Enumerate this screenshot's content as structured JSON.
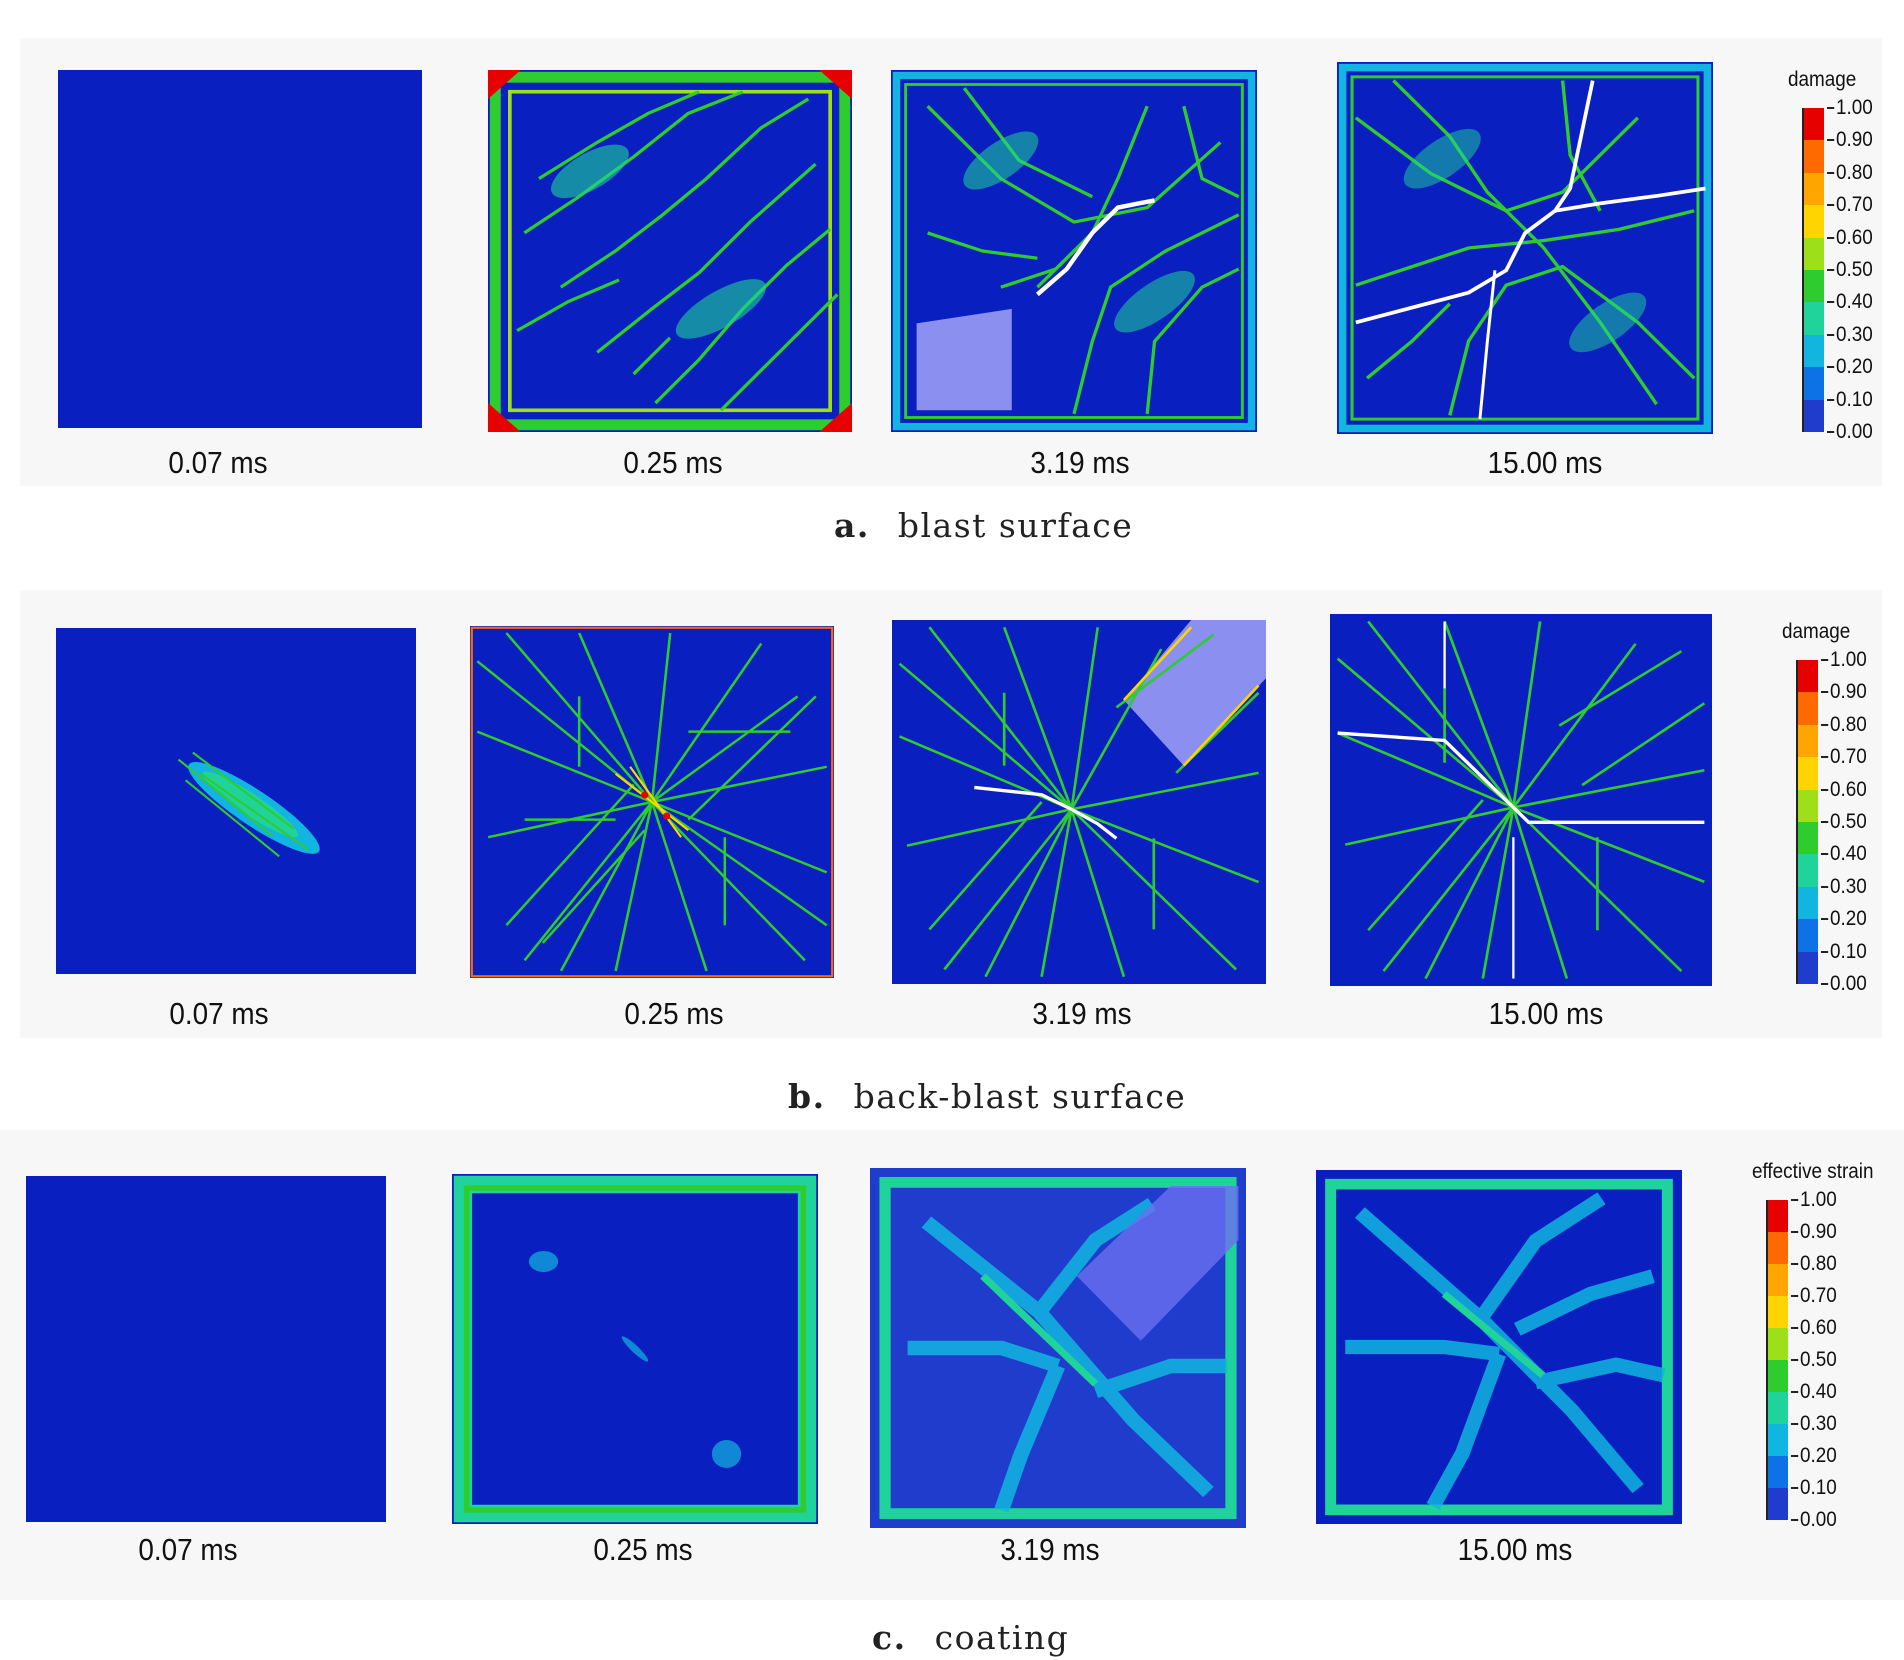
{
  "colors": {
    "background": "#0a1fbf",
    "scale": [
      "#e60000",
      "#ff6a00",
      "#ffa500",
      "#ffd400",
      "#9de01a",
      "#2ecc2e",
      "#1fd39a",
      "#12b5e0",
      "#0d72e6",
      "#1f3ccc",
      "#0a1fbf"
    ]
  },
  "rows": [
    {
      "letter": "a.",
      "caption": "blast surface",
      "times": [
        "0.07 ms",
        "0.25 ms",
        "3.19 ms",
        "15.00 ms"
      ],
      "legend": {
        "title": "damage",
        "ticks": [
          "1.00",
          "0.90",
          "0.80",
          "0.70",
          "0.60",
          "0.50",
          "0.40",
          "0.30",
          "0.20",
          "0.10",
          "0.00"
        ]
      }
    },
    {
      "letter": "b.",
      "caption": "back-blast surface",
      "times": [
        "0.07 ms",
        "0.25 ms",
        "3.19 ms",
        "15.00 ms"
      ],
      "legend": {
        "title": "damage",
        "ticks": [
          "1.00",
          "0.90",
          "0.80",
          "0.70",
          "0.60",
          "0.50",
          "0.40",
          "0.30",
          "0.20",
          "0.10",
          "0.00"
        ]
      }
    },
    {
      "letter": "c.",
      "caption": "coating",
      "times": [
        "0.07 ms",
        "0.25 ms",
        "3.19 ms",
        "15.00 ms"
      ],
      "legend": {
        "title": "effective strain",
        "ticks": [
          "1.00",
          "0.90",
          "0.80",
          "0.70",
          "0.60",
          "0.50",
          "0.40",
          "0.30",
          "0.20",
          "0.10",
          "0.00"
        ]
      }
    }
  ]
}
